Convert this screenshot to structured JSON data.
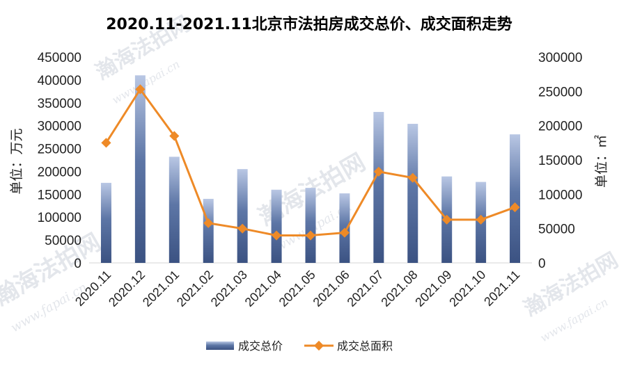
{
  "chart_data": {
    "type": "bar",
    "title": "2020.11-2021.11北京市法拍房成交总价、成交面积走势",
    "categories": [
      "2020.11",
      "2020.12",
      "2021.01",
      "2021.02",
      "2021.03",
      "2021.04",
      "2021.05",
      "2021.06",
      "2021.07",
      "2021.08",
      "2021.09",
      "2021.10",
      "2021.11"
    ],
    "series": [
      {
        "name": "成交总价",
        "type": "bar",
        "axis": "left",
        "values": [
          175000,
          410000,
          232000,
          140000,
          205000,
          160000,
          164000,
          152000,
          330000,
          304000,
          189000,
          177000,
          281000
        ]
      },
      {
        "name": "成交总面积",
        "type": "line",
        "axis": "right",
        "values": [
          175000,
          253000,
          185000,
          58000,
          50000,
          40000,
          40000,
          44000,
          133000,
          124000,
          63000,
          63000,
          81000
        ]
      }
    ],
    "ylabel": "单位：万元",
    "y2label": "单位：㎡",
    "ylim": [
      0,
      450000
    ],
    "y2lim": [
      0,
      300000
    ],
    "yticks": [
      "450000",
      "400000",
      "350000",
      "300000",
      "250000",
      "200000",
      "150000",
      "100000",
      "50000",
      "0"
    ],
    "y2ticks": [
      "300000",
      "250000",
      "200000",
      "150000",
      "100000",
      "50000",
      "0"
    ],
    "legend_position": "bottom",
    "grid": false
  },
  "watermark": {
    "text": "瀚海法拍网",
    "url": "www.fapai.cn"
  },
  "colors": {
    "bar_top": "#b4c3e1",
    "bar_bottom": "#3d5684",
    "line": "#ee8a27"
  }
}
